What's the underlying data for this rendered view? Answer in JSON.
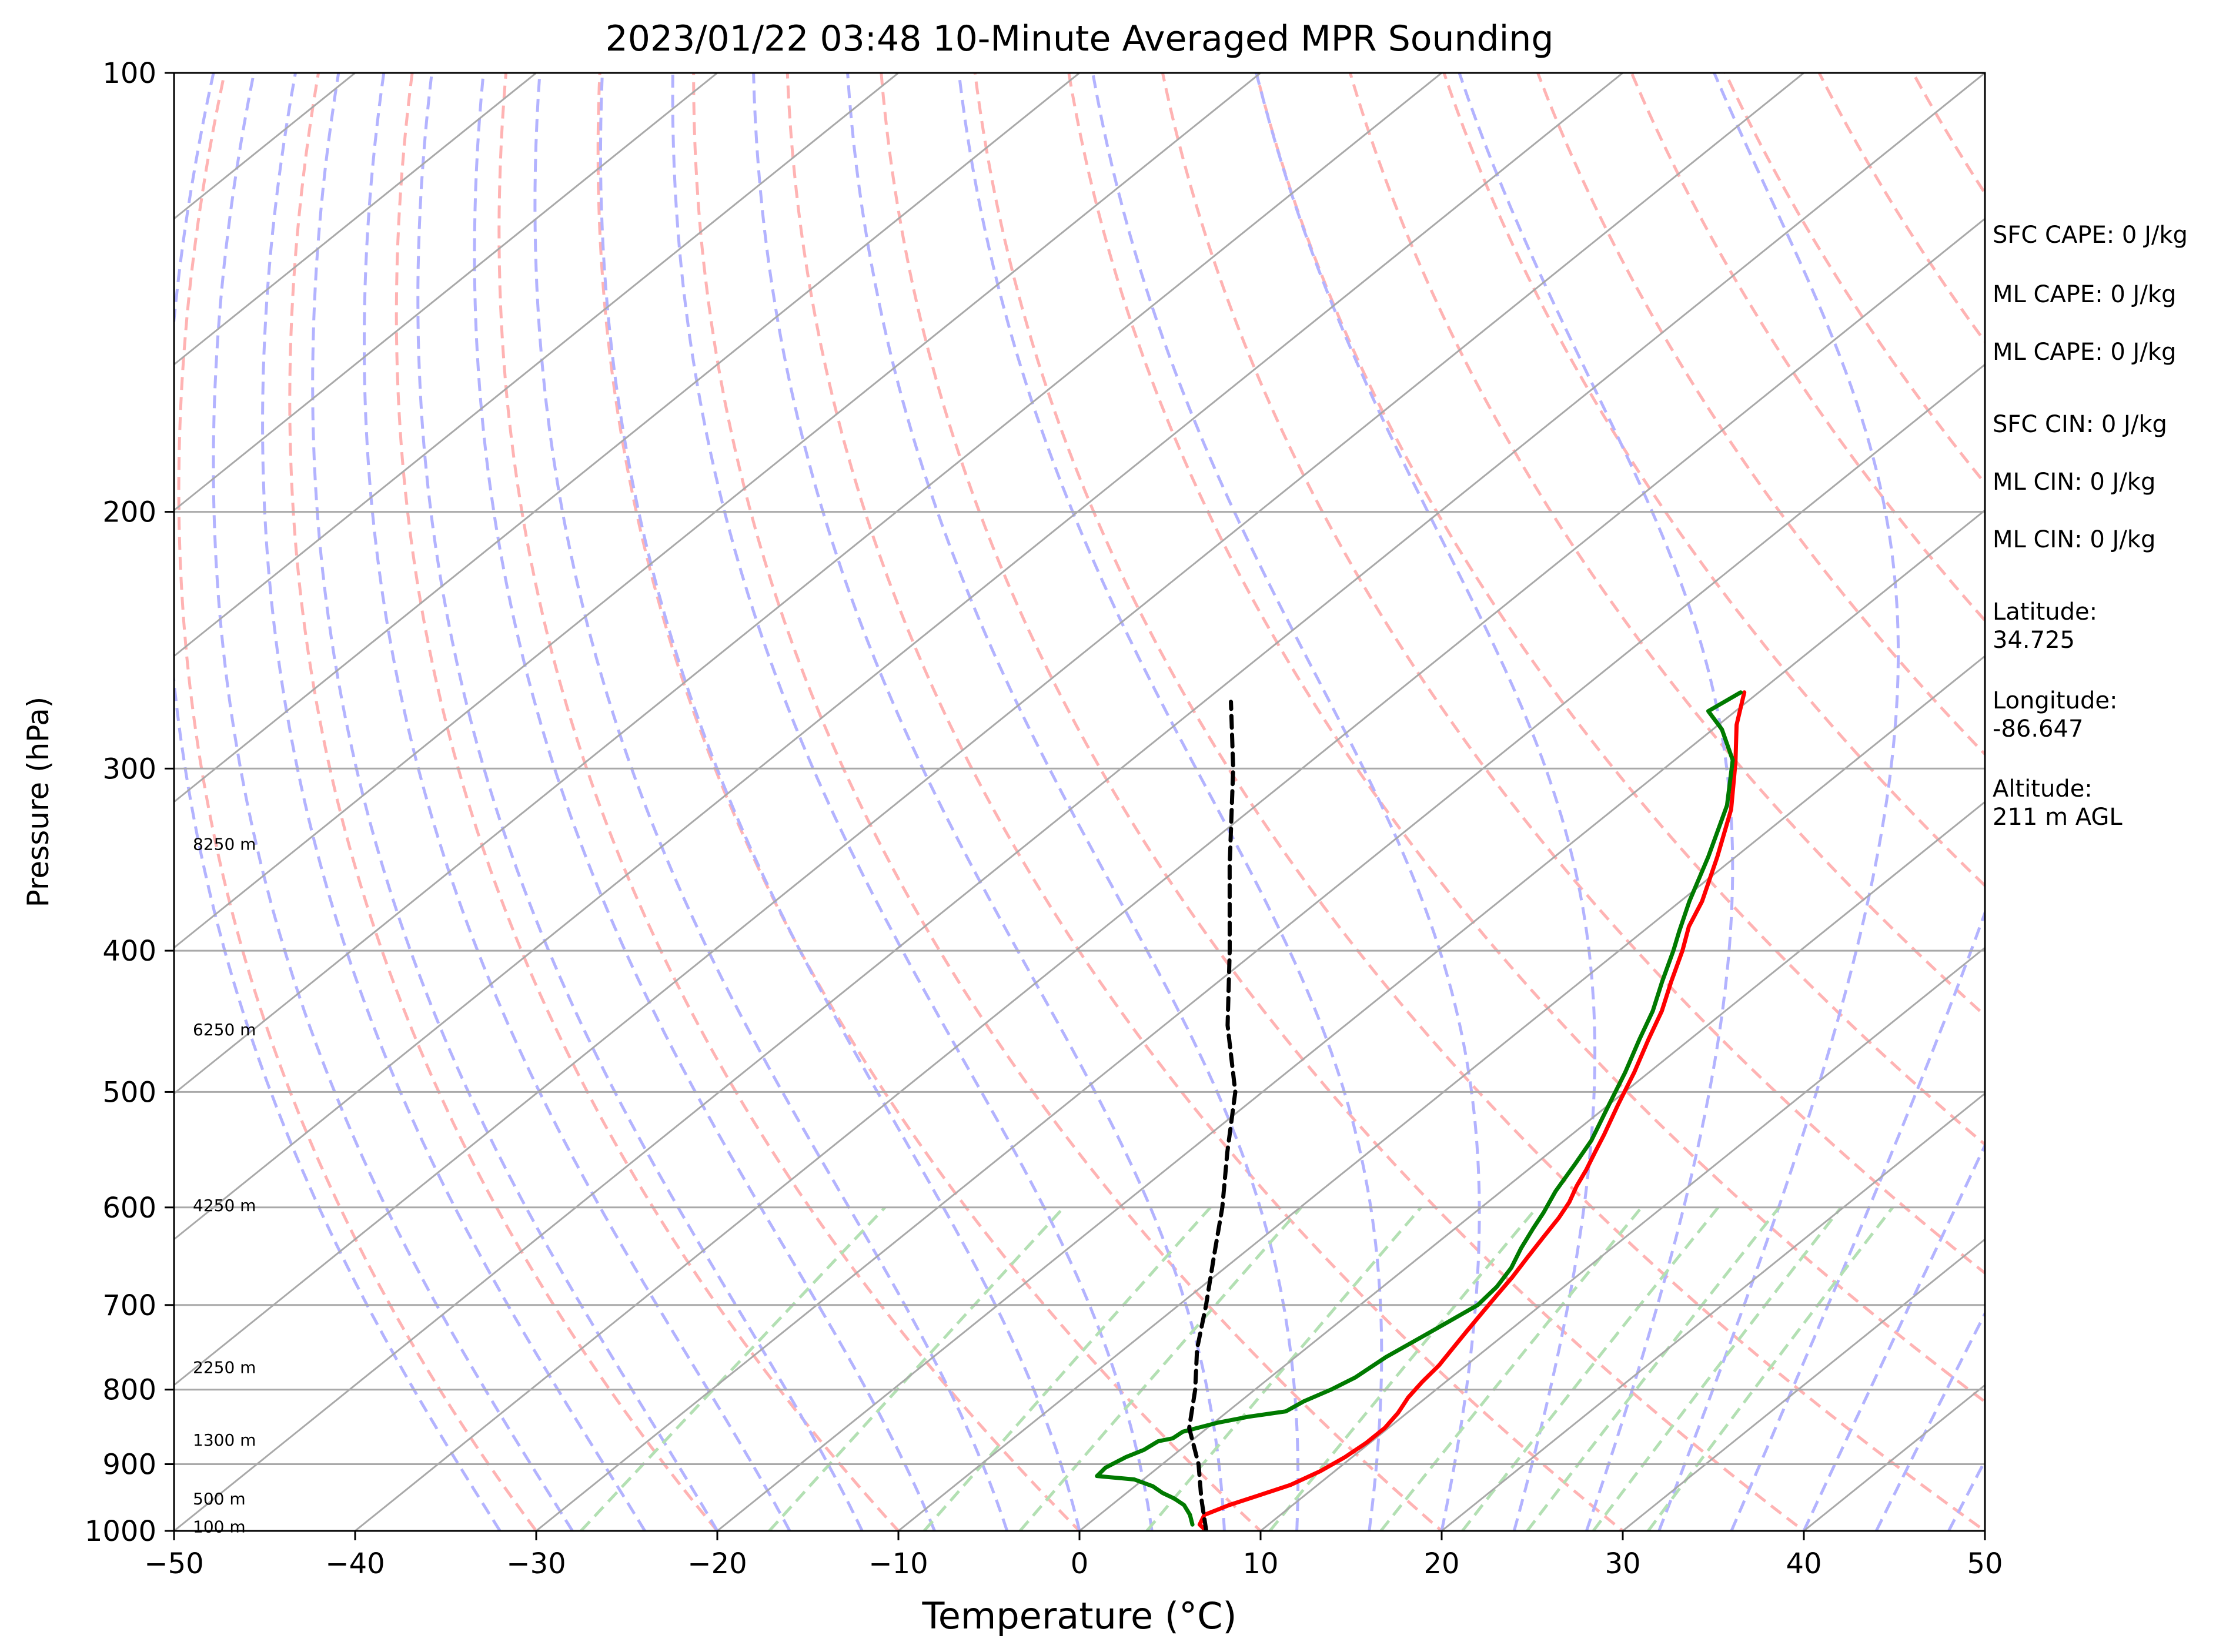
{
  "chart_data": {
    "type": "line",
    "title": "2023/01/22 03:48 10-Minute Averaged MPR Sounding",
    "xlabel": "Temperature (°C)",
    "ylabel": "Pressure (hPa)",
    "xlim": [
      -50,
      50
    ],
    "ylim": [
      1000,
      100
    ],
    "y_scale": "log",
    "grid": true,
    "x_ticks": [
      "−50",
      "−40",
      "−30",
      "−20",
      "−10",
      "0",
      "10",
      "20",
      "30",
      "40",
      "50"
    ],
    "y_ticks": [
      "1000",
      "900",
      "800",
      "700",
      "600",
      "500",
      "400",
      "300",
      "200",
      "100"
    ],
    "height_labels": [
      {
        "text": "100 m",
        "p": 993
      },
      {
        "text": "500 m",
        "p": 950
      },
      {
        "text": "1300 m",
        "p": 866
      },
      {
        "text": "2250 m",
        "p": 772
      },
      {
        "text": "4250 m",
        "p": 598
      },
      {
        "text": "6250 m",
        "p": 453
      },
      {
        "text": "8250 m",
        "p": 338
      }
    ],
    "series": [
      {
        "role": "temperature",
        "color": "#ff0000",
        "points": [
          [
            7.0,
            1000
          ],
          [
            6.2,
            990
          ],
          [
            5.8,
            975
          ],
          [
            6.5,
            960
          ],
          [
            7.5,
            945
          ],
          [
            8.5,
            930
          ],
          [
            9.2,
            910
          ],
          [
            9.6,
            890
          ],
          [
            9.8,
            870
          ],
          [
            9.8,
            850
          ],
          [
            9.5,
            830
          ],
          [
            9.0,
            810
          ],
          [
            8.7,
            790
          ],
          [
            8.5,
            770
          ],
          [
            8.1,
            750
          ],
          [
            7.7,
            730
          ],
          [
            7.3,
            710
          ],
          [
            6.9,
            690
          ],
          [
            6.5,
            670
          ],
          [
            6.0,
            650
          ],
          [
            5.5,
            630
          ],
          [
            5.0,
            610
          ],
          [
            4.5,
            595
          ],
          [
            3.8,
            580
          ],
          [
            3.2,
            565
          ],
          [
            2.5,
            550
          ],
          [
            1.8,
            535
          ],
          [
            0.5,
            510
          ],
          [
            -0.8,
            485
          ],
          [
            -2.3,
            460
          ],
          [
            -3.5,
            440
          ],
          [
            -5.0,
            420
          ],
          [
            -6.5,
            400
          ],
          [
            -7.8,
            385
          ],
          [
            -8.8,
            370
          ],
          [
            -11.0,
            345
          ],
          [
            -13.5,
            320
          ],
          [
            -16.5,
            297
          ],
          [
            -19.0,
            280
          ],
          [
            -20.8,
            266
          ]
        ]
      },
      {
        "role": "dewpoint",
        "color": "#007a00",
        "points": [
          [
            5.8,
            990
          ],
          [
            5.0,
            975
          ],
          [
            4.0,
            960
          ],
          [
            3.0,
            950
          ],
          [
            2.0,
            942
          ],
          [
            1.0,
            932
          ],
          [
            -0.5,
            922
          ],
          [
            -2.8,
            917
          ],
          [
            -2.9,
            905
          ],
          [
            -2.5,
            890
          ],
          [
            -2.0,
            880
          ],
          [
            -1.8,
            868
          ],
          [
            -1.2,
            864
          ],
          [
            -1.1,
            855
          ],
          [
            0.2,
            843
          ],
          [
            1.5,
            835
          ],
          [
            3.2,
            828
          ],
          [
            3.5,
            815
          ],
          [
            4.2,
            800
          ],
          [
            4.7,
            785
          ],
          [
            5.0,
            760
          ],
          [
            5.5,
            740
          ],
          [
            6.0,
            720
          ],
          [
            6.5,
            700
          ],
          [
            6.3,
            680
          ],
          [
            5.8,
            660
          ],
          [
            5.0,
            640
          ],
          [
            4.3,
            620
          ],
          [
            3.8,
            605
          ],
          [
            3.0,
            585
          ],
          [
            2.2,
            560
          ],
          [
            1.5,
            540
          ],
          [
            0.0,
            510
          ],
          [
            -1.3,
            485
          ],
          [
            -2.8,
            460
          ],
          [
            -4.0,
            440
          ],
          [
            -5.5,
            420
          ],
          [
            -7.0,
            400
          ],
          [
            -8.0,
            388
          ],
          [
            -9.5,
            370
          ],
          [
            -11.5,
            345
          ],
          [
            -14.0,
            318
          ],
          [
            -16.8,
            296
          ],
          [
            -19.5,
            282
          ],
          [
            -21.5,
            274
          ],
          [
            -21.0,
            266
          ]
        ]
      },
      {
        "role": "parcel",
        "color": "#000000",
        "points": [
          [
            7.0,
            1000
          ],
          [
            4.5,
            950
          ],
          [
            2.0,
            900
          ],
          [
            -1.0,
            850
          ],
          [
            -3.3,
            800
          ],
          [
            -6.0,
            750
          ],
          [
            -8.5,
            700
          ],
          [
            -11.3,
            650
          ],
          [
            -14.3,
            600
          ],
          [
            -17.8,
            550
          ],
          [
            -21.5,
            500
          ],
          [
            -26.5,
            450
          ],
          [
            -31.5,
            400
          ],
          [
            -37.3,
            350
          ],
          [
            -43.8,
            300
          ],
          [
            -48.5,
            270
          ]
        ]
      }
    ]
  },
  "sidebar": {
    "sfc_cape": "SFC CAPE: 0 J/kg",
    "ml_cape_1": "ML CAPE: 0 J/kg",
    "ml_cape_2": "ML CAPE: 0 J/kg",
    "sfc_cin": "SFC CIN: 0 J/kg",
    "ml_cin_1": "ML CIN: 0 J/kg",
    "ml_cin_2": "ML CIN: 0 J/kg",
    "latitude_label": "Latitude:",
    "latitude_value": "34.725",
    "longitude_label": "Longitude:",
    "longitude_value": "-86.647",
    "altitude_label": "Altitude:",
    "altitude_value": "211 m AGL"
  },
  "colors": {
    "isotherm": "#a9a9a9",
    "dry_adiabat": "#ffb3b3",
    "moist_adiabat": "#b3b3ff",
    "mixing_ratio": "#b3e0b3"
  }
}
